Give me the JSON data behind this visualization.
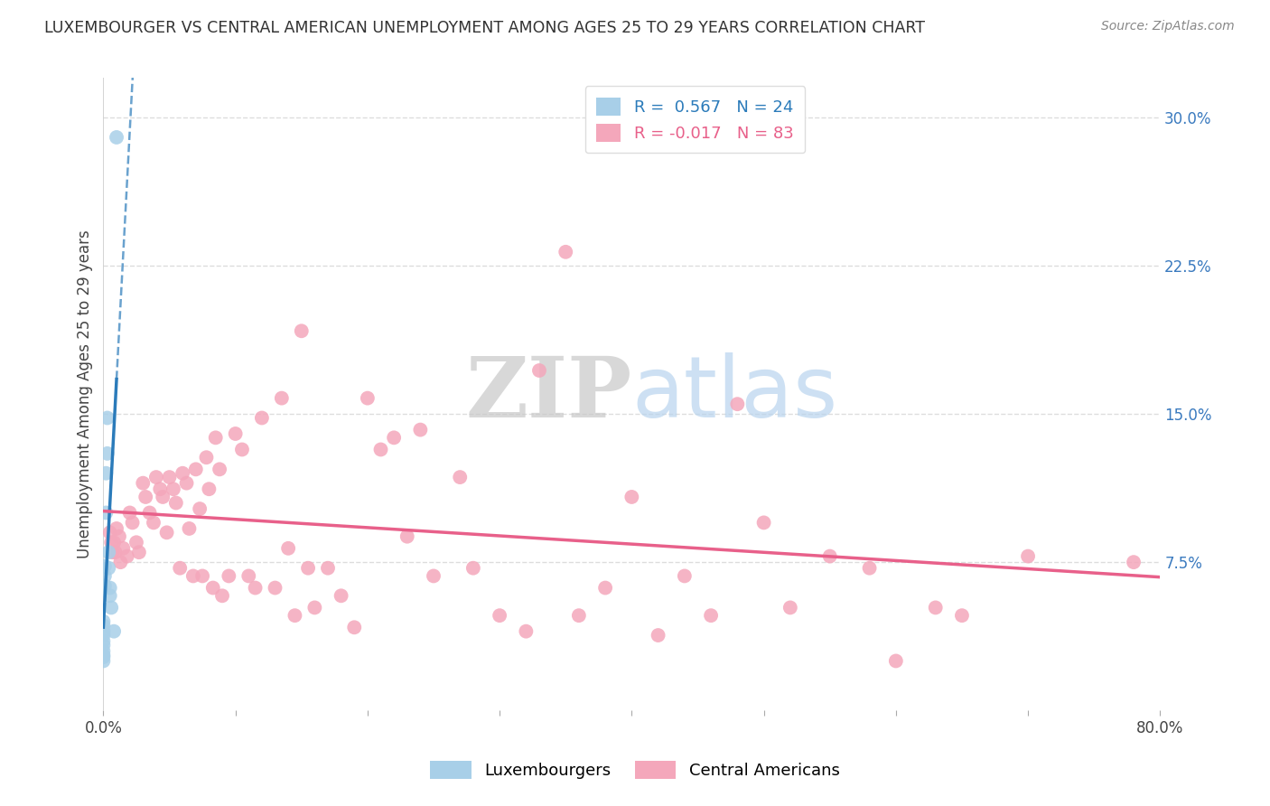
{
  "title": "LUXEMBOURGER VS CENTRAL AMERICAN UNEMPLOYMENT AMONG AGES 25 TO 29 YEARS CORRELATION CHART",
  "source": "Source: ZipAtlas.com",
  "ylabel": "Unemployment Among Ages 25 to 29 years",
  "xlim": [
    0,
    0.8
  ],
  "ylim": [
    0.0,
    0.32
  ],
  "yticks_right": [
    0.075,
    0.15,
    0.225,
    0.3
  ],
  "yticklabels_right": [
    "7.5%",
    "15.0%",
    "22.5%",
    "30.0%"
  ],
  "background_color": "#ffffff",
  "grid_color": "#dddddd",
  "watermark_zip": "ZIP",
  "watermark_atlas": "atlas",
  "legend_blue_r_val": "0.567",
  "legend_blue_n_val": "24",
  "legend_pink_r_val": "-0.017",
  "legend_pink_n_val": "83",
  "blue_color": "#a8cfe8",
  "pink_color": "#f4a7bb",
  "blue_line_color": "#2b7bba",
  "pink_line_color": "#e8608a",
  "blue_scatter_x": [
    0.0,
    0.0,
    0.0,
    0.0,
    0.0,
    0.0,
    0.0,
    0.0,
    0.0,
    0.0,
    0.001,
    0.001,
    0.001,
    0.002,
    0.002,
    0.003,
    0.003,
    0.004,
    0.004,
    0.005,
    0.005,
    0.006,
    0.008,
    0.01
  ],
  "blue_scatter_y": [
    0.025,
    0.027,
    0.028,
    0.03,
    0.033,
    0.035,
    0.038,
    0.04,
    0.043,
    0.045,
    0.063,
    0.068,
    0.073,
    0.1,
    0.12,
    0.13,
    0.148,
    0.072,
    0.08,
    0.062,
    0.058,
    0.052,
    0.04,
    0.29
  ],
  "pink_scatter_x": [
    0.005,
    0.006,
    0.007,
    0.008,
    0.009,
    0.01,
    0.012,
    0.013,
    0.015,
    0.018,
    0.02,
    0.022,
    0.025,
    0.027,
    0.03,
    0.032,
    0.035,
    0.038,
    0.04,
    0.043,
    0.045,
    0.048,
    0.05,
    0.053,
    0.055,
    0.058,
    0.06,
    0.063,
    0.065,
    0.068,
    0.07,
    0.073,
    0.075,
    0.078,
    0.08,
    0.083,
    0.085,
    0.088,
    0.09,
    0.095,
    0.1,
    0.105,
    0.11,
    0.115,
    0.12,
    0.13,
    0.135,
    0.14,
    0.145,
    0.15,
    0.155,
    0.16,
    0.17,
    0.18,
    0.19,
    0.2,
    0.21,
    0.22,
    0.23,
    0.24,
    0.25,
    0.27,
    0.28,
    0.3,
    0.32,
    0.33,
    0.35,
    0.36,
    0.38,
    0.4,
    0.42,
    0.44,
    0.46,
    0.48,
    0.5,
    0.52,
    0.55,
    0.58,
    0.6,
    0.63,
    0.65,
    0.7,
    0.78
  ],
  "pink_scatter_y": [
    0.09,
    0.085,
    0.08,
    0.085,
    0.08,
    0.092,
    0.088,
    0.075,
    0.082,
    0.078,
    0.1,
    0.095,
    0.085,
    0.08,
    0.115,
    0.108,
    0.1,
    0.095,
    0.118,
    0.112,
    0.108,
    0.09,
    0.118,
    0.112,
    0.105,
    0.072,
    0.12,
    0.115,
    0.092,
    0.068,
    0.122,
    0.102,
    0.068,
    0.128,
    0.112,
    0.062,
    0.138,
    0.122,
    0.058,
    0.068,
    0.14,
    0.132,
    0.068,
    0.062,
    0.148,
    0.062,
    0.158,
    0.082,
    0.048,
    0.192,
    0.072,
    0.052,
    0.072,
    0.058,
    0.042,
    0.158,
    0.132,
    0.138,
    0.088,
    0.142,
    0.068,
    0.118,
    0.072,
    0.048,
    0.04,
    0.172,
    0.232,
    0.048,
    0.062,
    0.108,
    0.038,
    0.068,
    0.048,
    0.155,
    0.095,
    0.052,
    0.078,
    0.072,
    0.025,
    0.052,
    0.048,
    0.078,
    0.075
  ]
}
